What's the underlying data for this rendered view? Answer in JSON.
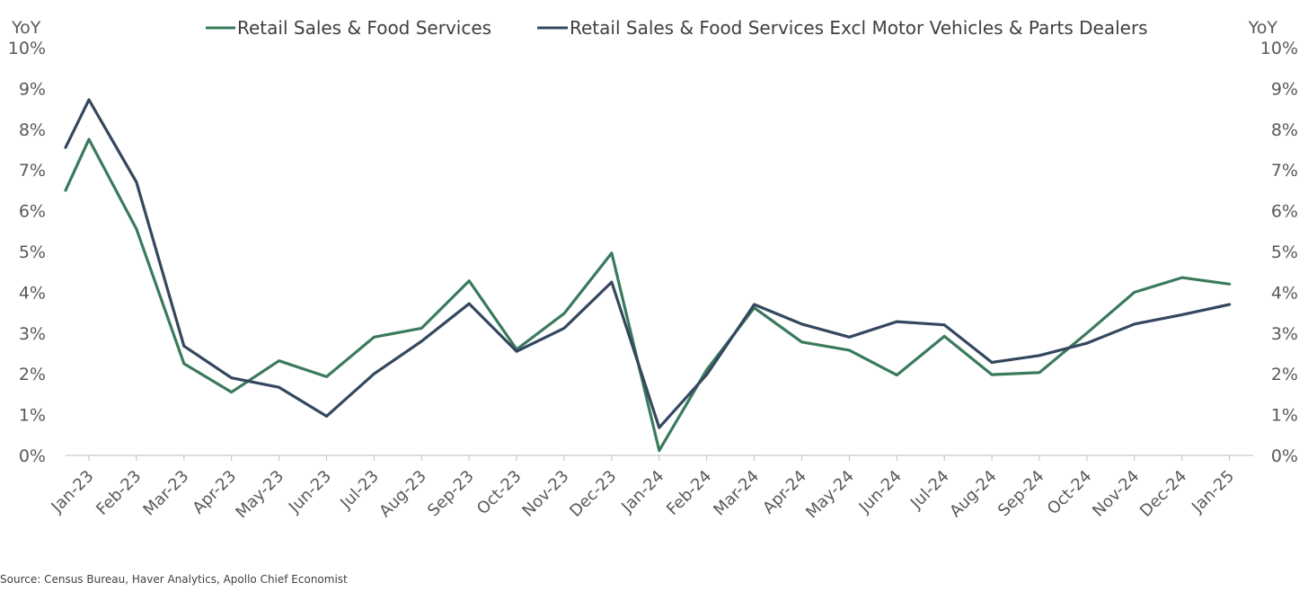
{
  "chart_data": {
    "type": "line",
    "left_axis_unit": "YoY",
    "right_axis_unit": "YoY",
    "y_ticks": [
      "0%",
      "1%",
      "2%",
      "3%",
      "4%",
      "5%",
      "6%",
      "7%",
      "8%",
      "9%",
      "10%"
    ],
    "ylim": [
      0,
      10
    ],
    "grid": false,
    "legend_position": "top",
    "categories": [
      "Jan-23",
      "Feb-23",
      "Mar-23",
      "Apr-23",
      "May-23",
      "Jun-23",
      "Jul-23",
      "Aug-23",
      "Sep-23",
      "Oct-23",
      "Nov-23",
      "Dec-23",
      "Jan-24",
      "Feb-24",
      "Mar-24",
      "Apr-24",
      "May-24",
      "Jun-24",
      "Jul-24",
      "Aug-24",
      "Sep-24",
      "Oct-24",
      "Nov-24",
      "Dec-24",
      "Jan-25"
    ],
    "series": [
      {
        "name": "Retail Sales & Food Services",
        "color": "#3a7a5c",
        "start": 6.5,
        "values": [
          7.75,
          5.55,
          2.25,
          1.55,
          2.32,
          1.93,
          2.9,
          3.12,
          4.28,
          2.6,
          3.48,
          4.96,
          0.12,
          2.1,
          3.62,
          2.78,
          2.58,
          1.97,
          2.92,
          1.98,
          2.03,
          3.0,
          4.0,
          4.36,
          4.2
        ]
      },
      {
        "name": "Retail Sales & Food Services Excl Motor Vehicles & Parts Dealers",
        "color": "#34475f",
        "start": 7.55,
        "values": [
          8.72,
          6.7,
          2.68,
          1.9,
          1.67,
          0.96,
          2.0,
          2.8,
          3.72,
          2.55,
          3.12,
          4.25,
          0.68,
          1.98,
          3.7,
          3.22,
          2.9,
          3.28,
          3.2,
          2.28,
          2.45,
          2.75,
          3.22,
          3.45,
          3.7
        ]
      }
    ]
  },
  "source": "Source: Census Bureau, Haver Analytics, Apollo Chief Economist"
}
